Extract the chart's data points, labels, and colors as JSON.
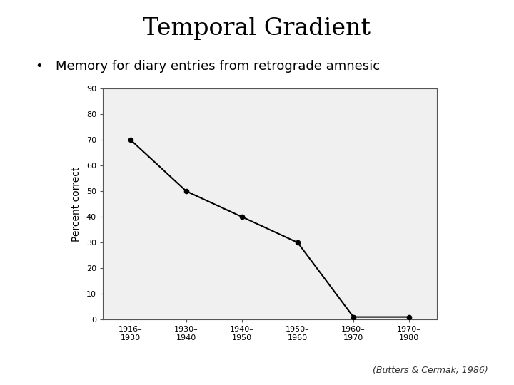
{
  "title": "Temporal Gradient",
  "bullet_text": "Memory for diary entries from retrograde amnesic",
  "citation": "(Butters & Cermak, 1986)",
  "x_labels": [
    "1916–1930",
    "1930–1940",
    "1940–1950",
    "1950–1960",
    "1960–1970",
    "1970–1980"
  ],
  "x_values": [
    0,
    1,
    2,
    3,
    4,
    5
  ],
  "y_values": [
    70,
    50,
    40,
    30,
    1,
    1
  ],
  "ylabel": "Percent correct",
  "ylim": [
    0,
    90
  ],
  "yticks": [
    0,
    10,
    20,
    30,
    40,
    50,
    60,
    70,
    80,
    90
  ],
  "background_color": "#ffffff",
  "plot_bg_color": "#f0f0f0",
  "chart_frame_color": "#cccccc",
  "line_color": "#000000",
  "marker_color": "#000000",
  "title_fontsize": 24,
  "bullet_fontsize": 13,
  "citation_fontsize": 9,
  "axis_label_fontsize": 10,
  "tick_fontsize": 8
}
